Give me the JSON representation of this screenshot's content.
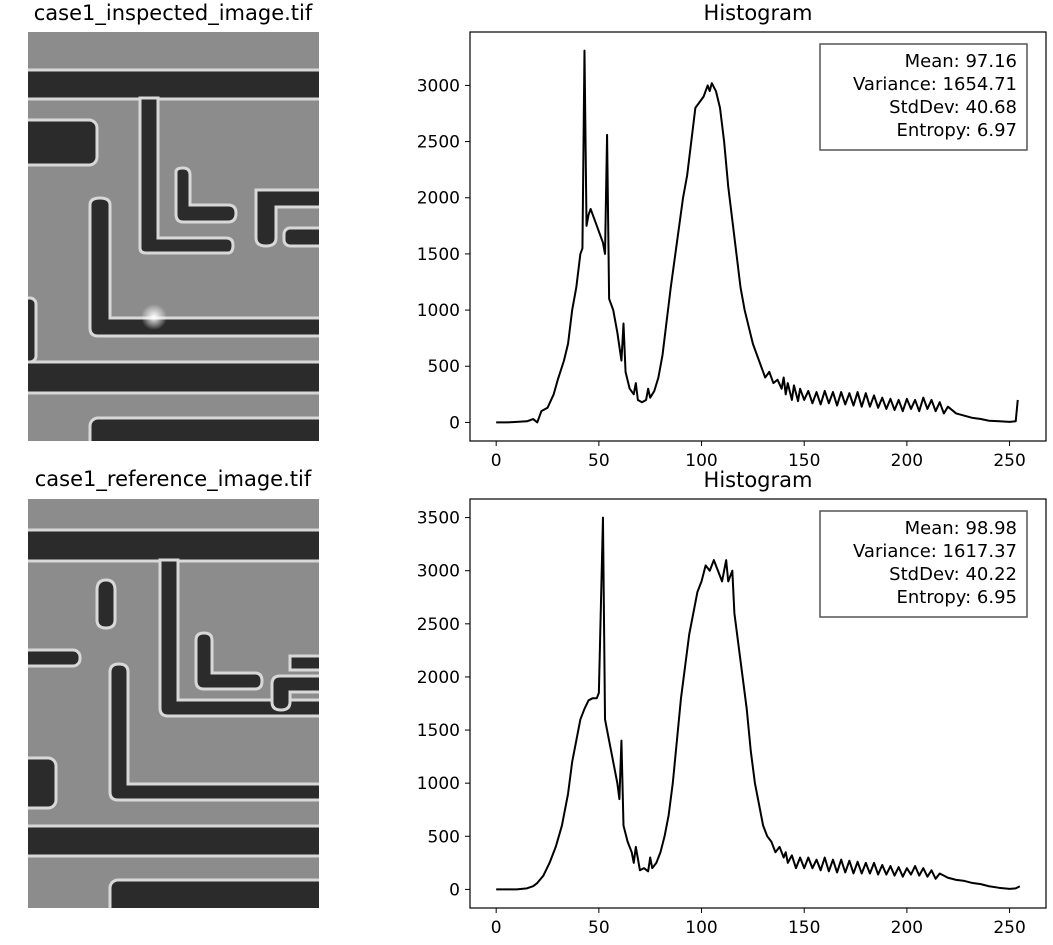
{
  "images": [
    {
      "title": "case1_inspected_image.tif"
    },
    {
      "title": "case1_reference_image.tif"
    }
  ],
  "chart_data": [
    {
      "type": "line",
      "title": "Histogram",
      "color": "#000000",
      "annotation": [
        "Mean: 97.16",
        "Variance: 1654.71",
        "StdDev: 40.68",
        "Entropy: 6.97"
      ],
      "x": [
        0,
        5,
        10,
        15,
        18,
        20,
        22,
        25,
        28,
        30,
        33,
        35,
        37,
        39,
        41,
        42,
        43,
        44,
        45,
        46,
        48,
        50,
        52,
        53,
        54,
        55,
        57,
        59,
        61,
        62,
        63,
        65,
        67,
        68,
        69,
        71,
        73,
        74,
        75,
        77,
        79,
        81,
        83,
        85,
        88,
        91,
        93,
        95,
        97,
        99,
        101,
        103,
        104,
        105,
        107,
        109,
        111,
        113,
        115,
        117,
        119,
        121,
        123,
        125,
        127,
        129,
        131,
        133,
        135,
        137,
        139,
        140,
        141,
        142,
        144,
        145,
        147,
        148,
        150,
        152,
        154,
        156,
        158,
        160,
        162,
        164,
        166,
        168,
        170,
        172,
        174,
        176,
        178,
        180,
        182,
        184,
        186,
        188,
        190,
        192,
        194,
        196,
        198,
        200,
        202,
        204,
        206,
        208,
        210,
        212,
        214,
        216,
        218,
        220,
        224,
        228,
        232,
        236,
        240,
        245,
        250,
        253,
        254
      ],
      "values": [
        0,
        0,
        5,
        10,
        30,
        0,
        100,
        130,
        250,
        380,
        550,
        700,
        1000,
        1200,
        1500,
        1550,
        3310,
        1750,
        1850,
        1900,
        1800,
        1700,
        1600,
        1500,
        2560,
        1100,
        1000,
        800,
        550,
        880,
        450,
        300,
        250,
        350,
        200,
        180,
        200,
        300,
        220,
        280,
        400,
        600,
        900,
        1200,
        1600,
        2000,
        2200,
        2500,
        2800,
        2850,
        2900,
        3000,
        2950,
        3020,
        2950,
        2800,
        2500,
        2100,
        1800,
        1500,
        1200,
        1000,
        850,
        700,
        600,
        500,
        400,
        450,
        350,
        380,
        300,
        400,
        250,
        350,
        200,
        330,
        190,
        300,
        200,
        280,
        170,
        270,
        160,
        280,
        170,
        270,
        150,
        270,
        160,
        260,
        150,
        270,
        140,
        260,
        140,
        240,
        130,
        220,
        120,
        210,
        110,
        200,
        100,
        210,
        120,
        200,
        100,
        220,
        120,
        200,
        100,
        180,
        80,
        140,
        80,
        60,
        40,
        30,
        15,
        10,
        5,
        10,
        200
      ],
      "xlim": [
        -12.75,
        267.75
      ],
      "ylim": [
        -165.5,
        3475.5
      ],
      "xticks": [
        0,
        50,
        100,
        150,
        200,
        250
      ],
      "yticks": [
        0,
        500,
        1000,
        1500,
        2000,
        2500,
        3000
      ],
      "grid": false
    },
    {
      "type": "line",
      "title": "Histogram",
      "color": "#000000",
      "annotation": [
        "Mean: 98.98",
        "Variance: 1617.37",
        "StdDev: 40.22",
        "Entropy: 6.95"
      ],
      "x": [
        0,
        10,
        15,
        18,
        20,
        23,
        26,
        29,
        32,
        35,
        37,
        39,
        41,
        43,
        45,
        47,
        49,
        50,
        52,
        53,
        55,
        57,
        59,
        60,
        61,
        62,
        64,
        66,
        67,
        68,
        70,
        72,
        74,
        75,
        76,
        78,
        80,
        82,
        84,
        86,
        88,
        90,
        92,
        94,
        96,
        98,
        100,
        102,
        104,
        106,
        108,
        110,
        112,
        113,
        115,
        116,
        118,
        120,
        122,
        124,
        126,
        128,
        130,
        132,
        134,
        136,
        138,
        140,
        141,
        142,
        144,
        146,
        148,
        150,
        152,
        154,
        156,
        158,
        160,
        162,
        164,
        166,
        168,
        170,
        172,
        174,
        176,
        178,
        180,
        182,
        184,
        186,
        188,
        190,
        192,
        194,
        196,
        198,
        200,
        202,
        204,
        206,
        208,
        210,
        212,
        214,
        216,
        220,
        224,
        228,
        232,
        236,
        240,
        245,
        250,
        253,
        255
      ],
      "values": [
        0,
        0,
        10,
        30,
        60,
        130,
        250,
        400,
        600,
        900,
        1200,
        1400,
        1600,
        1700,
        1780,
        1800,
        1800,
        1850,
        3500,
        1600,
        1400,
        1200,
        1000,
        850,
        1400,
        600,
        450,
        350,
        250,
        400,
        180,
        200,
        170,
        300,
        200,
        250,
        350,
        500,
        700,
        1000,
        1400,
        1800,
        2100,
        2400,
        2600,
        2800,
        2900,
        3050,
        3000,
        3100,
        3000,
        2900,
        3100,
        2900,
        3000,
        2600,
        2300,
        2000,
        1700,
        1300,
        1000,
        800,
        600,
        500,
        450,
        350,
        400,
        300,
        350,
        250,
        320,
        200,
        300,
        200,
        300,
        200,
        280,
        180,
        300,
        170,
        280,
        160,
        280,
        160,
        270,
        150,
        260,
        150,
        250,
        150,
        250,
        140,
        230,
        140,
        220,
        130,
        210,
        120,
        200,
        140,
        220,
        130,
        200,
        120,
        180,
        100,
        150,
        110,
        90,
        80,
        60,
        50,
        30,
        15,
        5,
        10,
        30
      ],
      "xlim": [
        -12.75,
        267.75
      ],
      "ylim": [
        -175,
        3675
      ],
      "xticks": [
        0,
        50,
        100,
        150,
        200,
        250
      ],
      "yticks": [
        0,
        500,
        1000,
        1500,
        2000,
        2500,
        3000,
        3500
      ],
      "grid": false
    }
  ]
}
